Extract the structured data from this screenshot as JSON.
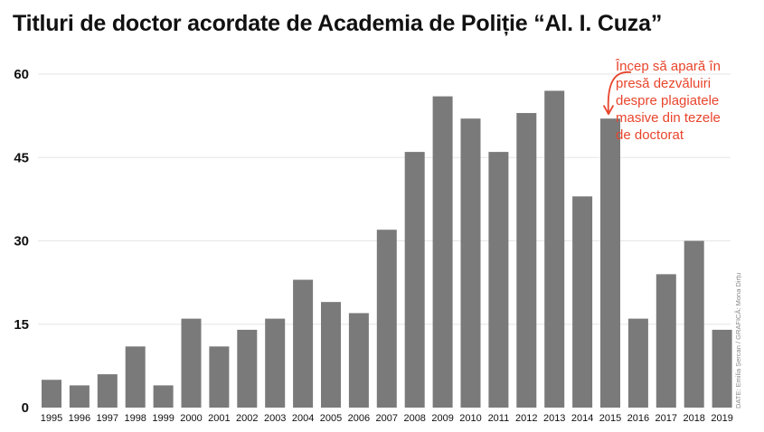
{
  "colors": {
    "bar": "#7a7a7a",
    "grid": "#e6e6e6",
    "annotation": "#e8452c",
    "credit": "#888888",
    "text": "#111111"
  },
  "chart_data": {
    "type": "bar",
    "title": "Titluri de doctor acordate de Academia de Poliție “Al. I. Cuza”",
    "xlabel": "",
    "ylabel": "",
    "ylim": [
      0,
      60
    ],
    "yticks": [
      0,
      15,
      30,
      45,
      60
    ],
    "grid": true,
    "categories": [
      "1995",
      "1996",
      "1997",
      "1998",
      "1999",
      "2000",
      "2001",
      "2002",
      "2003",
      "2004",
      "2005",
      "2006",
      "2007",
      "2008",
      "2009",
      "2010",
      "2011",
      "2012",
      "2013",
      "2014",
      "2015",
      "2016",
      "2017",
      "2018",
      "2019"
    ],
    "values": [
      5,
      4,
      6,
      11,
      4,
      16,
      11,
      14,
      16,
      23,
      19,
      17,
      32,
      46,
      56,
      52,
      46,
      53,
      57,
      38,
      52,
      16,
      24,
      30,
      14
    ],
    "annotation": {
      "target_category": "2015",
      "lines": [
        "Încep să apară în",
        "presă dezvăluiri",
        "despre plagiatele",
        "masive din tezele",
        "de doctorat"
      ]
    },
    "credit": "DATE: Emilia Șercan / GRAFICĂ: Mona Dirțu"
  }
}
